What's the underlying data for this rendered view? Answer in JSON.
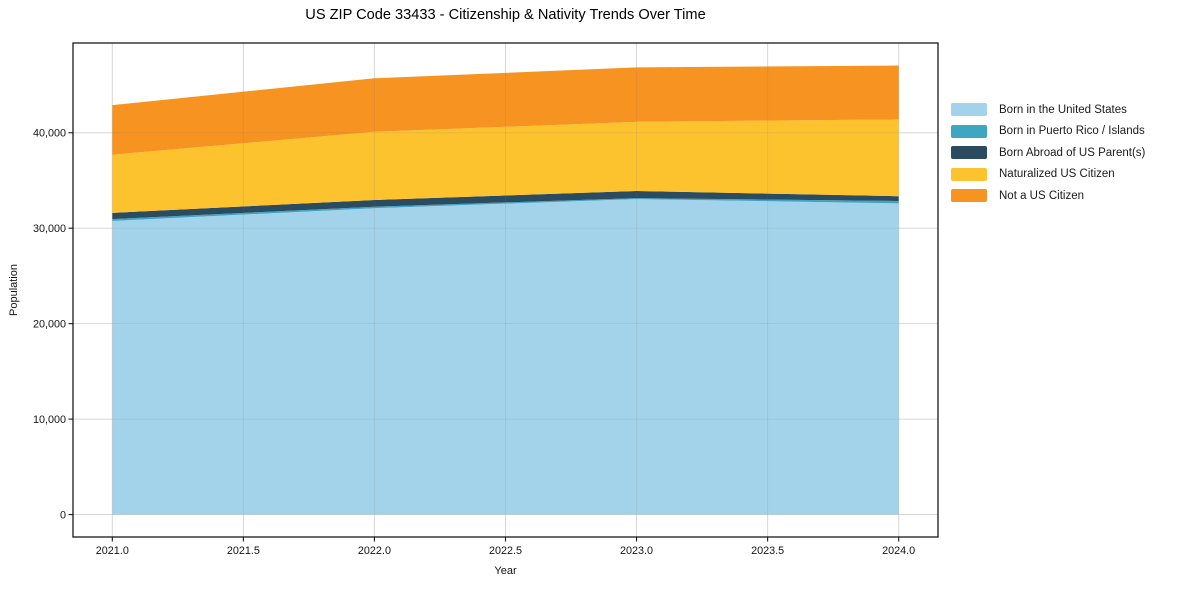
{
  "chart_data": {
    "type": "area",
    "stacked": true,
    "title": "US ZIP Code 33433 - Citizenship & Nativity Trends Over Time",
    "xlabel": "Year",
    "ylabel": "Population",
    "x": [
      2021,
      2022,
      2023,
      2024
    ],
    "series": [
      {
        "id": "born-in-us",
        "name": "Born in the United States",
        "color": "#A3D3EA",
        "values": [
          30750,
          32100,
          33050,
          32600
        ]
      },
      {
        "id": "born-in-pr",
        "name": "Born in Puerto Rico / Islands",
        "color": "#3EA6C3",
        "values": [
          200,
          150,
          100,
          250
        ]
      },
      {
        "id": "born-abroad",
        "name": "Born Abroad of US Parent(s)",
        "color": "#2B4B60",
        "values": [
          650,
          700,
          750,
          500
        ]
      },
      {
        "id": "naturalized",
        "name": "Naturalized US Citizen",
        "color": "#FDC32F",
        "values": [
          6100,
          7150,
          7250,
          8050
        ]
      },
      {
        "id": "not-a-citizen",
        "name": "Not a US Citizen",
        "color": "#F79320",
        "values": [
          5200,
          5600,
          5700,
          5650
        ]
      }
    ],
    "totals": [
      42900,
      45700,
      46850,
      47050
    ],
    "xlim": [
      2020.85,
      2024.15
    ],
    "ylim": [
      -2352,
      49402
    ],
    "xticks": [
      2021.0,
      2021.5,
      2022.0,
      2022.5,
      2023.0,
      2023.5,
      2024.0
    ],
    "xtick_labels": [
      "2021.0",
      "2021.5",
      "2022.0",
      "2022.5",
      "2023.0",
      "2023.5",
      "2024.0"
    ],
    "yticks": [
      0,
      10000,
      20000,
      30000,
      40000
    ],
    "ytick_labels": [
      "0",
      "10,000",
      "20,000",
      "30,000",
      "40,000"
    ],
    "grid": true,
    "legend_position": "outside-right",
    "colors": {
      "grid": "#E9E9E9",
      "grid_overlay": "rgba(110,110,110,0.14)",
      "axis": "#1a1a1a",
      "text": "#141414",
      "background": "#ffffff"
    }
  }
}
